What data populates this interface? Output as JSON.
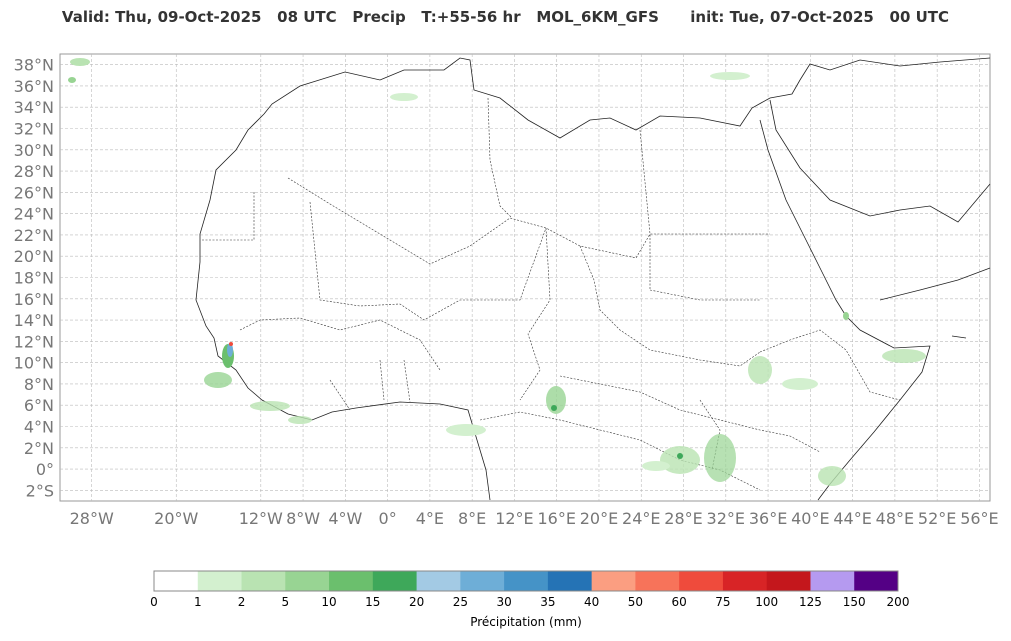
{
  "header": {
    "valid": "Valid: Thu, 09-Oct-2025",
    "hour": "08 UTC",
    "variable": "Precip",
    "lead": "T:+55-56 hr",
    "model": "MOL_6KM_GFS",
    "init": "init: Tue, 07-Oct-2025",
    "init_hour": "00 UTC"
  },
  "map": {
    "lon_range": [
      -31,
      57
    ],
    "lat_range": [
      -3,
      39
    ],
    "lat_ticks": [
      "38°N",
      "36°N",
      "34°N",
      "32°N",
      "30°N",
      "28°N",
      "26°N",
      "24°N",
      "22°N",
      "20°N",
      "18°N",
      "16°N",
      "14°N",
      "12°N",
      "10°N",
      "8°N",
      "6°N",
      "4°N",
      "2°N",
      "0°",
      "2°S"
    ],
    "lat_values": [
      38,
      36,
      34,
      32,
      30,
      28,
      26,
      24,
      22,
      20,
      18,
      16,
      14,
      12,
      10,
      8,
      6,
      4,
      2,
      0,
      -2
    ],
    "lon_ticks": [
      "28°W",
      "20°W",
      "12°W",
      "8°W",
      "4°W",
      "0°",
      "4°E",
      "8°E",
      "12°E",
      "16°E",
      "20°E",
      "24°E",
      "28°E",
      "32°E",
      "36°E",
      "40°E",
      "44°E",
      "48°E",
      "52°E",
      "56°E"
    ],
    "lon_values": [
      -28,
      -20,
      -12,
      -8,
      -4,
      0,
      4,
      8,
      12,
      16,
      20,
      24,
      28,
      32,
      36,
      40,
      44,
      48,
      52,
      56
    ],
    "grid": true
  },
  "colorbar": {
    "title": "Précipitation (mm)",
    "levels": [
      "0",
      "1",
      "2",
      "5",
      "10",
      "15",
      "20",
      "25",
      "30",
      "35",
      "40",
      "50",
      "60",
      "75",
      "100",
      "125",
      "150",
      "200"
    ],
    "colors": [
      "#ffffff",
      "#d3f0cf",
      "#b9e3b2",
      "#98d493",
      "#6bbf6d",
      "#3ea85a",
      "#a3cae4",
      "#6eaed7",
      "#4593c7",
      "#2573b5",
      "#fb9e81",
      "#f7735a",
      "#ef4b3c",
      "#d82426",
      "#c4171c",
      "#b59af0",
      "#540085"
    ]
  }
}
